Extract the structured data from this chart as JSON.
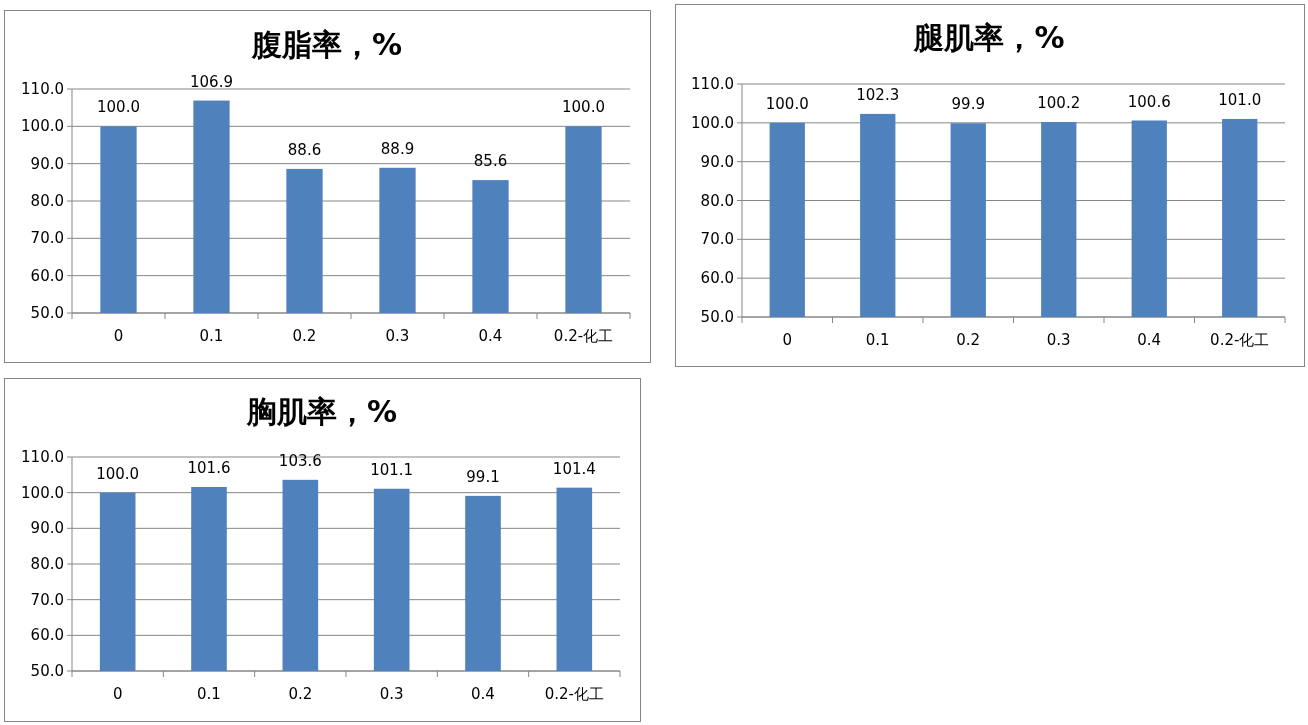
{
  "chart_data": [
    {
      "type": "bar",
      "title": "腹脂率，%",
      "categories": [
        "0",
        "0.1",
        "0.2",
        "0.3",
        "0.4",
        "0.2-化工"
      ],
      "values": [
        100.0,
        106.9,
        88.6,
        88.9,
        85.6,
        100.0
      ],
      "value_labels": [
        "100.0",
        "106.9",
        "88.6",
        "88.9",
        "85.6",
        "100.0"
      ],
      "color": "#4f81bd",
      "ylim": [
        50,
        110
      ],
      "yticks": [
        {
          "value": 50,
          "label": "50.0"
        },
        {
          "value": 60,
          "label": "60.0"
        },
        {
          "value": 70,
          "label": "70.0"
        },
        {
          "value": 80,
          "label": "80.0"
        },
        {
          "value": 90,
          "label": "90.0"
        },
        {
          "value": 100,
          "label": "100.0"
        },
        {
          "value": 110,
          "label": "110.0"
        }
      ],
      "grid": "y"
    },
    {
      "type": "bar",
      "title": "腿肌率，%",
      "categories": [
        "0",
        "0.1",
        "0.2",
        "0.3",
        "0.4",
        "0.2-化工"
      ],
      "values": [
        100.0,
        102.3,
        99.9,
        100.2,
        100.6,
        101.0
      ],
      "value_labels": [
        "100.0",
        "102.3",
        "99.9",
        "100.2",
        "100.6",
        "101.0"
      ],
      "color": "#4f81bd",
      "ylim": [
        50,
        110
      ],
      "yticks": [
        {
          "value": 50,
          "label": "50.0"
        },
        {
          "value": 60,
          "label": "60.0"
        },
        {
          "value": 70,
          "label": "70.0"
        },
        {
          "value": 80,
          "label": "80.0"
        },
        {
          "value": 90,
          "label": "90.0"
        },
        {
          "value": 100,
          "label": "100.0"
        },
        {
          "value": 110,
          "label": "110.0"
        }
      ],
      "grid": "y"
    },
    {
      "type": "bar",
      "title": "胸肌率，%",
      "categories": [
        "0",
        "0.1",
        "0.2",
        "0.3",
        "0.4",
        "0.2-化工"
      ],
      "values": [
        100.0,
        101.6,
        103.6,
        101.1,
        99.1,
        101.4
      ],
      "value_labels": [
        "100.0",
        "101.6",
        "103.6",
        "101.1",
        "99.1",
        "101.4"
      ],
      "color": "#4f81bd",
      "ylim": [
        50,
        110
      ],
      "yticks": [
        {
          "value": 50,
          "label": "50.0"
        },
        {
          "value": 60,
          "label": "60.0"
        },
        {
          "value": 70,
          "label": "70.0"
        },
        {
          "value": 80,
          "label": "80.0"
        },
        {
          "value": 90,
          "label": "90.0"
        },
        {
          "value": 100,
          "label": "100.0"
        },
        {
          "value": 110,
          "label": "110.0"
        }
      ],
      "grid": "y"
    }
  ]
}
